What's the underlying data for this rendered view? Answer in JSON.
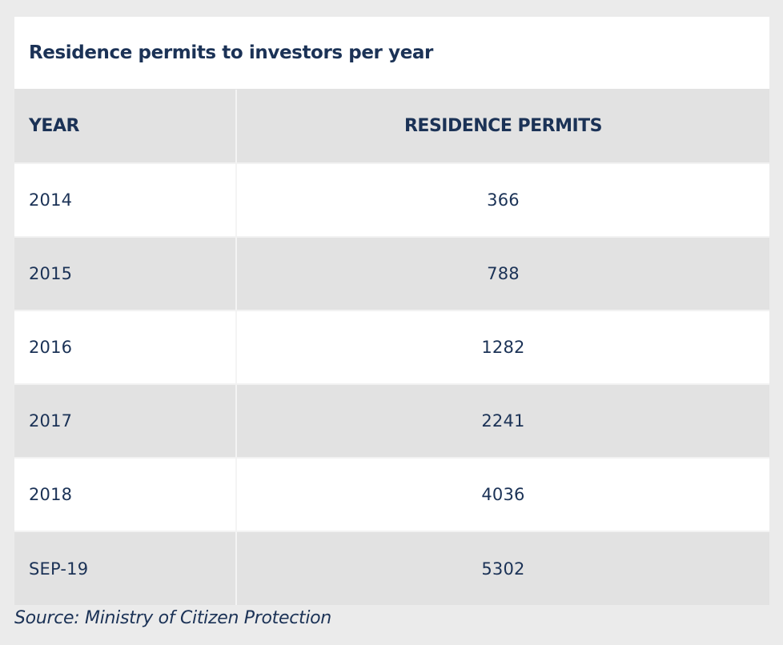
{
  "chart_data": {
    "type": "table",
    "title": "Residence permits to investors per year",
    "columns": [
      "YEAR",
      "RESIDENCE PERMITS"
    ],
    "rows": [
      {
        "year": "2014",
        "permits": "366"
      },
      {
        "year": "2015",
        "permits": "788"
      },
      {
        "year": "2016",
        "permits": "1282"
      },
      {
        "year": "2017",
        "permits": "2241"
      },
      {
        "year": "2018",
        "permits": "4036"
      },
      {
        "year": "SEP-19",
        "permits": "5302"
      }
    ],
    "source": "Source: Ministry of Citizen Protection"
  },
  "colors": {
    "text": "#1b3256",
    "header_bg": "#e2e2e2",
    "row_alt_bg": "#e2e2e2",
    "row_bg": "#ffffff",
    "page_bg": "#ebebeb"
  }
}
